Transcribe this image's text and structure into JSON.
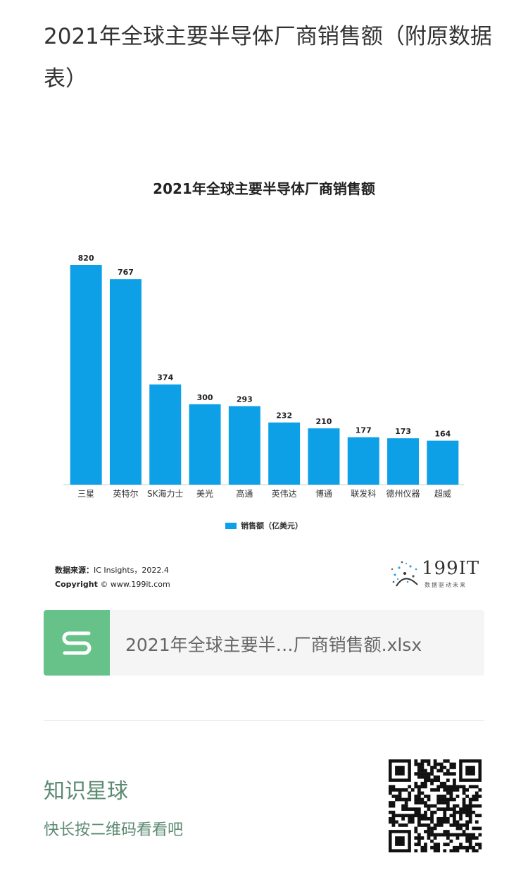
{
  "page": {
    "title": "2021年全球主要半导体厂商销售额（附原数据表）"
  },
  "chart_data": {
    "type": "bar",
    "title": "2021年全球主要半导体厂商销售额",
    "categories": [
      "三星",
      "英特尔",
      "SK海力士",
      "美光",
      "高通",
      "英伟达",
      "博通",
      "联发科",
      "德州仪器",
      "超威"
    ],
    "series": [
      {
        "name": "销售额（亿美元）",
        "values": [
          820,
          767,
          374,
          300,
          293,
          232,
          210,
          177,
          173,
          164
        ],
        "color": "#0ea0e6"
      }
    ],
    "ylim": [
      0,
      820
    ],
    "grid": false,
    "legend": "bottom"
  },
  "source": {
    "label": "数据来源：",
    "value": "IC Insights，2022.4",
    "copyright_label": "Copyright",
    "copyright_value": "© www.199it.com"
  },
  "logo": {
    "text": "199IT",
    "slogan": "数据驱动未来"
  },
  "file": {
    "name": "2021年全球主要半…厂商销售额.xlsx",
    "icon": "spreadsheet-s-icon",
    "icon_color": "#66c288"
  },
  "promo": {
    "title": "知识星球",
    "subtitle": "快长按二维码看看吧",
    "color": "#5c8a72"
  }
}
